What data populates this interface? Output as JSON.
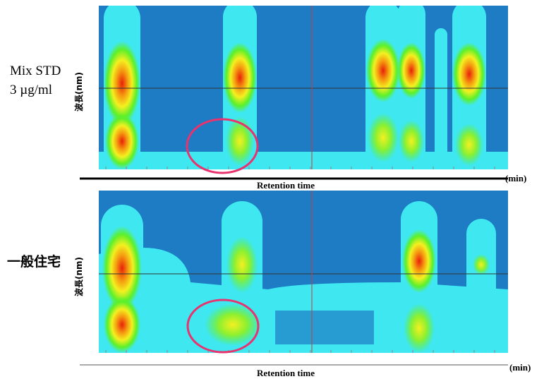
{
  "panels": [
    {
      "sample_label": [
        "Mix STD",
        "3 µg/ml"
      ],
      "y_label": "波長(nm)",
      "x_label": "Retention time",
      "x_unit": "(min)"
    },
    {
      "sample_label": [
        "一般住宅"
      ],
      "y_label": "波長(nm)",
      "x_label": "Retention time",
      "x_unit": "(min)"
    }
  ]
}
